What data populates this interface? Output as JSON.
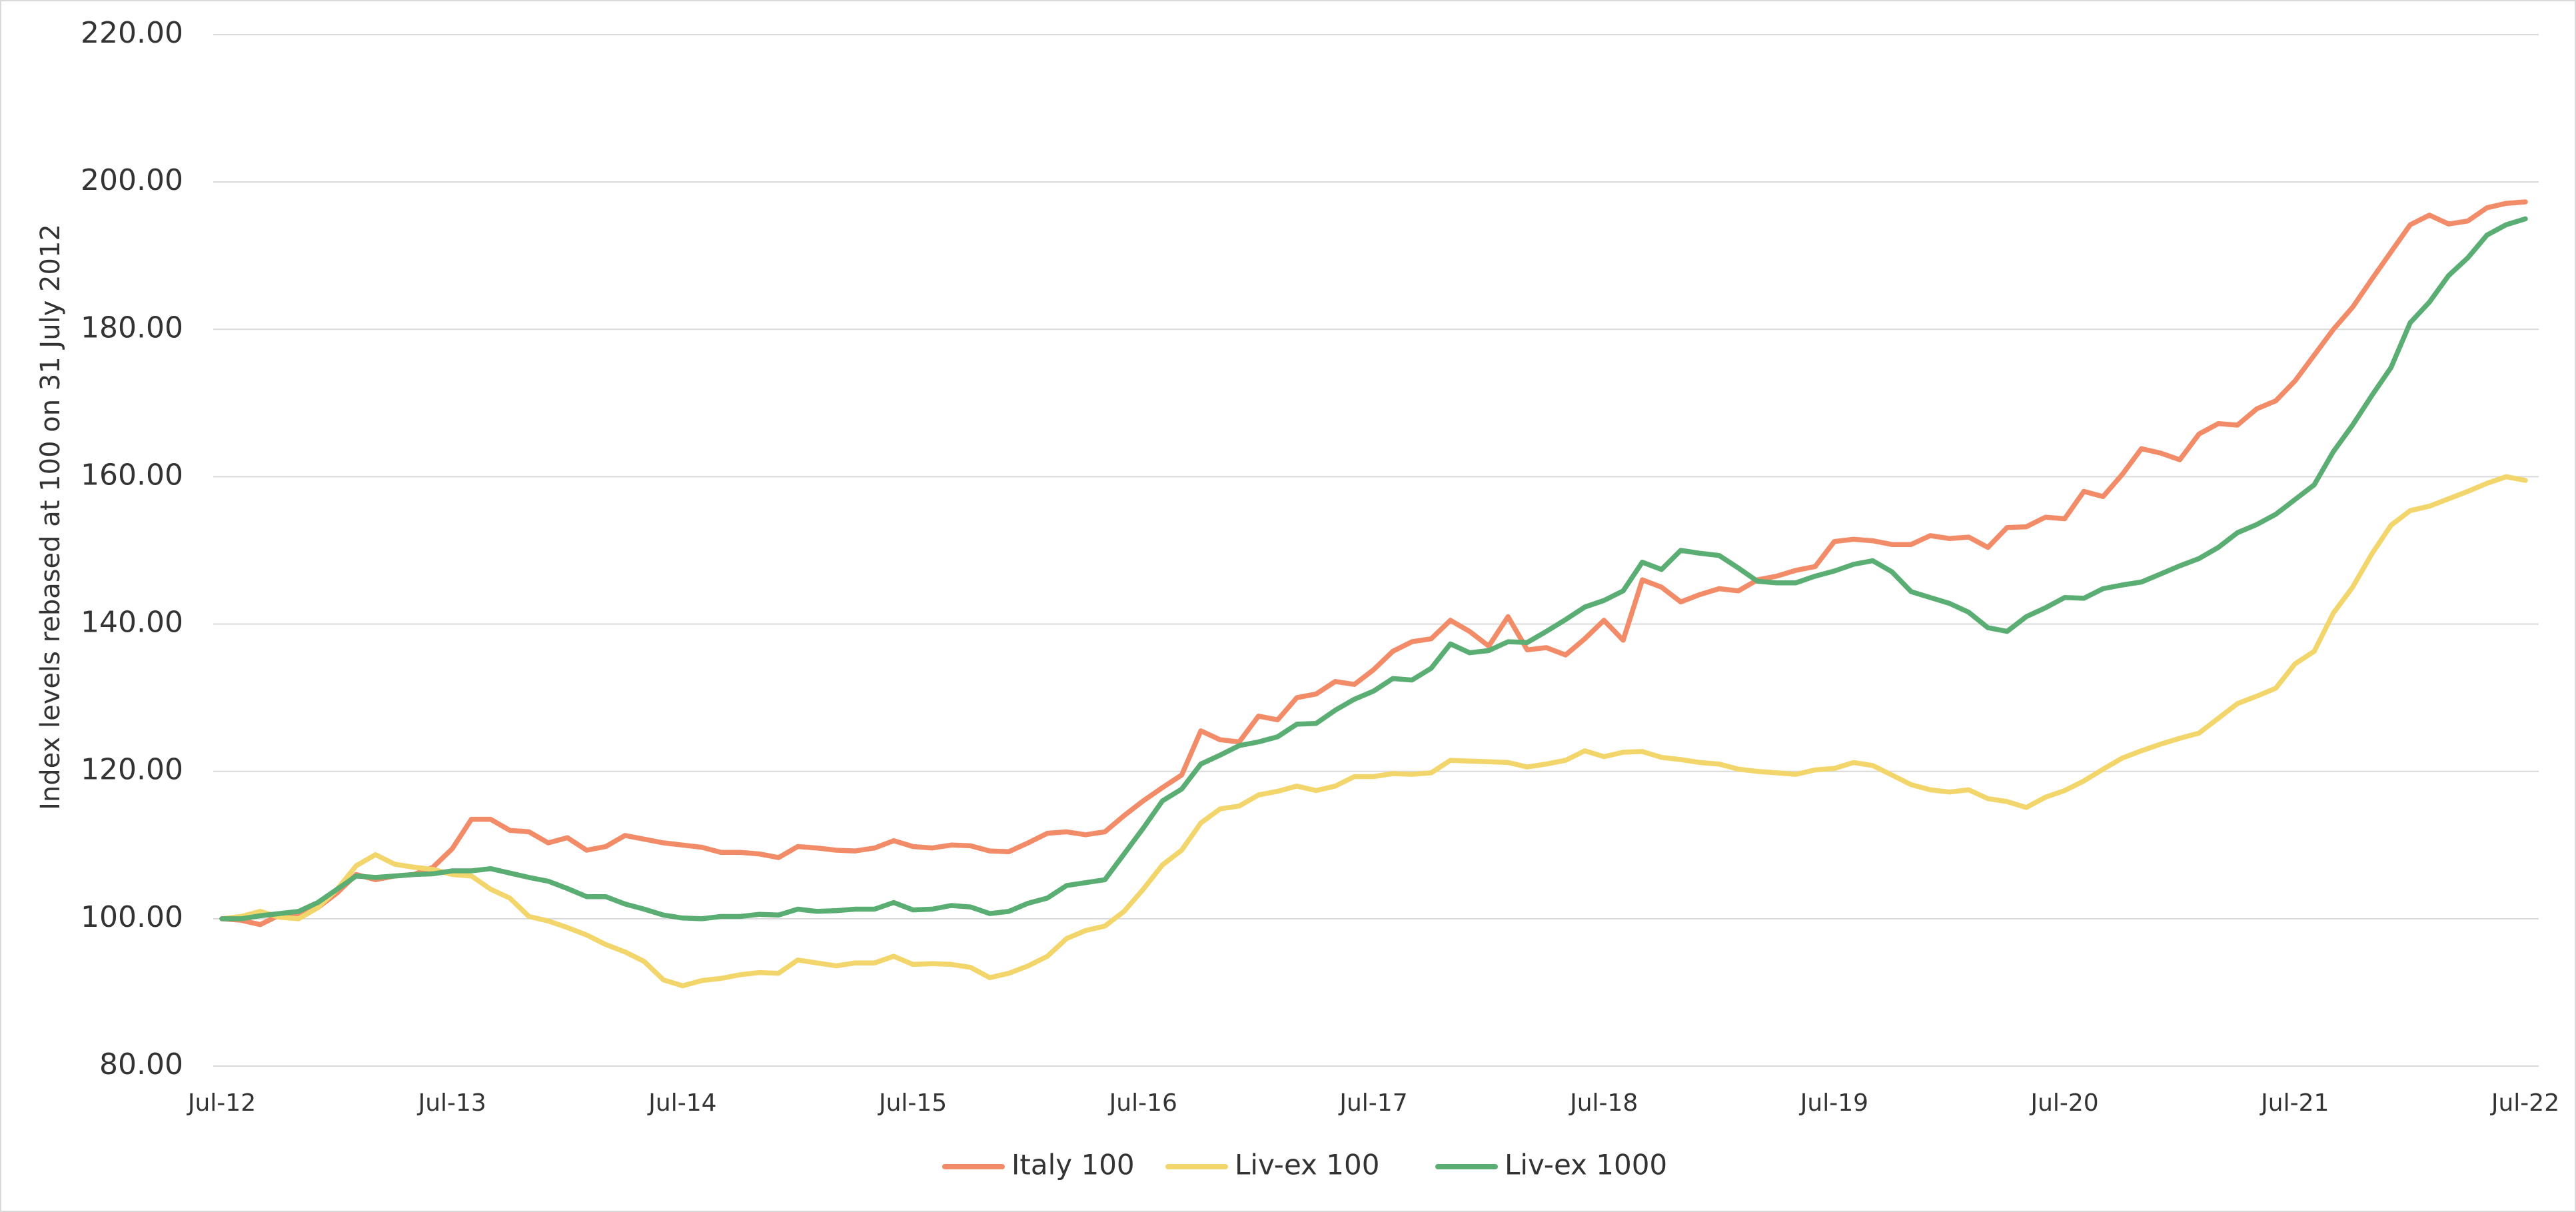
{
  "chart_data": {
    "type": "line",
    "ylabel": "Index levels rebased at 100 on 31 July 2012",
    "categories": [
      "Jul-12",
      null,
      null,
      null,
      null,
      null,
      null,
      null,
      null,
      null,
      null,
      null,
      "Jul-13",
      null,
      null,
      null,
      null,
      null,
      null,
      null,
      null,
      null,
      null,
      null,
      "Jul-14",
      null,
      null,
      null,
      null,
      null,
      null,
      null,
      null,
      null,
      null,
      null,
      "Jul-15",
      null,
      null,
      null,
      null,
      null,
      null,
      null,
      null,
      null,
      null,
      null,
      "Jul-16",
      null,
      null,
      null,
      null,
      null,
      null,
      null,
      null,
      null,
      null,
      null,
      "Jul-17",
      null,
      null,
      null,
      null,
      null,
      null,
      null,
      null,
      null,
      null,
      null,
      "Jul-18",
      null,
      null,
      null,
      null,
      null,
      null,
      null,
      null,
      null,
      null,
      null,
      "Jul-19",
      null,
      null,
      null,
      null,
      null,
      null,
      null,
      null,
      null,
      null,
      null,
      "Jul-20",
      null,
      null,
      null,
      null,
      null,
      null,
      null,
      null,
      null,
      null,
      null,
      "Jul-21",
      null,
      null,
      null,
      null,
      null,
      null,
      null,
      null,
      null,
      null,
      null,
      "Jul-22"
    ],
    "series": [
      {
        "name": "Italy 100",
        "color": "#f28b67",
        "values": [
          100,
          99.8,
          99.2,
          100.5,
          100.3,
          101.5,
          103.5,
          106,
          105.3,
          105.8,
          106,
          107,
          109.5,
          113.5,
          113.5,
          112,
          111.8,
          110.3,
          111,
          109.3,
          109.8,
          111.3,
          110.8,
          110.3,
          110,
          109.7,
          109,
          109,
          108.8,
          108.3,
          109.8,
          109.6,
          109.3,
          109.2,
          109.6,
          110.6,
          109.8,
          109.6,
          110,
          109.9,
          109.2,
          109.1,
          110.3,
          111.6,
          111.8,
          111.4,
          111.8,
          114,
          116,
          117.8,
          119.5,
          125.5,
          124.3,
          124,
          127.5,
          127,
          130,
          130.5,
          132.2,
          131.8,
          133.8,
          136.3,
          137.6,
          138,
          140.5,
          139,
          137,
          141,
          136.5,
          136.8,
          135.8,
          138,
          140.5,
          137.8,
          146,
          145,
          143,
          144,
          144.8,
          144.5,
          146,
          146.5,
          147.3,
          147.8,
          151.2,
          151.5,
          151.3,
          150.8,
          150.8,
          152,
          151.6,
          151.8,
          150.4,
          153.1,
          153.2,
          154.5,
          154.3,
          158,
          157.3,
          160.3,
          163.8,
          163.2,
          162.3,
          165.8,
          167.2,
          167,
          169.2,
          170.3,
          173,
          176.5,
          180,
          183,
          186.8,
          190.5,
          194.2,
          195.5,
          194.3,
          194.7,
          196.5,
          197.1,
          197.3
        ]
      },
      {
        "name": "Liv-ex 100",
        "color": "#f3d66b",
        "values": [
          100,
          100.3,
          101,
          100.2,
          100,
          101.5,
          104,
          107.2,
          108.7,
          107.4,
          107,
          106.7,
          106,
          105.8,
          104,
          102.8,
          100.3,
          99.7,
          98.8,
          97.8,
          96.5,
          95.5,
          94.2,
          91.7,
          90.9,
          91.6,
          91.9,
          92.4,
          92.7,
          92.6,
          94.4,
          94,
          93.6,
          94,
          94,
          94.9,
          93.8,
          93.9,
          93.8,
          93.4,
          92,
          92.6,
          93.6,
          94.9,
          97.3,
          98.4,
          99,
          101,
          104,
          107.3,
          109.3,
          113,
          114.9,
          115.3,
          116.8,
          117.3,
          118,
          117.4,
          118,
          119.3,
          119.3,
          119.7,
          119.6,
          119.8,
          121.5,
          121.4,
          121.3,
          121.2,
          120.6,
          121,
          121.5,
          122.8,
          122,
          122.6,
          122.7,
          121.9,
          121.6,
          121.2,
          121,
          120.3,
          120,
          119.8,
          119.6,
          120.2,
          120.4,
          121.2,
          120.8,
          119.5,
          118.2,
          117.5,
          117.2,
          117.5,
          116.3,
          115.9,
          115.1,
          116.5,
          117.4,
          118.7,
          120.3,
          121.8,
          122.8,
          123.7,
          124.5,
          125.2,
          127.2,
          129.2,
          130.2,
          131.3,
          134.6,
          136.3,
          141.5,
          145,
          149.5,
          153.4,
          155.4,
          156,
          157,
          158,
          159.1,
          160,
          159.5
        ]
      },
      {
        "name": "Liv-ex 1000",
        "color": "#5aae73",
        "values": [
          100,
          100,
          100.4,
          100.7,
          101,
          102.2,
          104,
          105.8,
          105.6,
          105.8,
          106,
          106.1,
          106.5,
          106.5,
          106.8,
          106.2,
          105.6,
          105.1,
          104.1,
          103,
          103,
          102,
          101.3,
          100.5,
          100.1,
          100,
          100.3,
          100.3,
          100.6,
          100.5,
          101.3,
          101,
          101.1,
          101.3,
          101.3,
          102.2,
          101.2,
          101.3,
          101.8,
          101.6,
          100.7,
          101,
          102.1,
          102.8,
          104.5,
          104.9,
          105.3,
          108.8,
          112.3,
          116,
          117.6,
          121,
          122.2,
          123.5,
          124,
          124.7,
          126.4,
          126.5,
          128.3,
          129.8,
          130.9,
          132.6,
          132.4,
          134,
          137.3,
          136.1,
          136.4,
          137.6,
          137.5,
          139,
          140.6,
          142.3,
          143.2,
          144.5,
          148.4,
          147.4,
          150,
          149.6,
          149.3,
          147.6,
          145.8,
          145.6,
          145.6,
          146.5,
          147.2,
          148.1,
          148.6,
          147.1,
          144.4,
          143.6,
          142.8,
          141.6,
          139.5,
          139,
          141,
          142.2,
          143.6,
          143.5,
          144.8,
          145.3,
          145.7,
          146.8,
          147.9,
          148.9,
          150.4,
          152.4,
          153.5,
          154.9,
          156.9,
          158.9,
          163.4,
          167,
          171,
          174.8,
          180.9,
          183.7,
          187.3,
          189.7,
          192.8,
          194.2,
          195
        ]
      }
    ],
    "ylim": [
      80,
      220
    ],
    "yticks": [
      {
        "value": 80,
        "label": "80.00"
      },
      {
        "value": 100,
        "label": "100.00"
      },
      {
        "value": 120,
        "label": "120.00"
      },
      {
        "value": 140,
        "label": "140.00"
      },
      {
        "value": 160,
        "label": "160.00"
      },
      {
        "value": 180,
        "label": "180.00"
      },
      {
        "value": 200,
        "label": "200.00"
      },
      {
        "value": 220,
        "label": "220.00"
      }
    ],
    "grid": true,
    "legend": "bottom"
  }
}
